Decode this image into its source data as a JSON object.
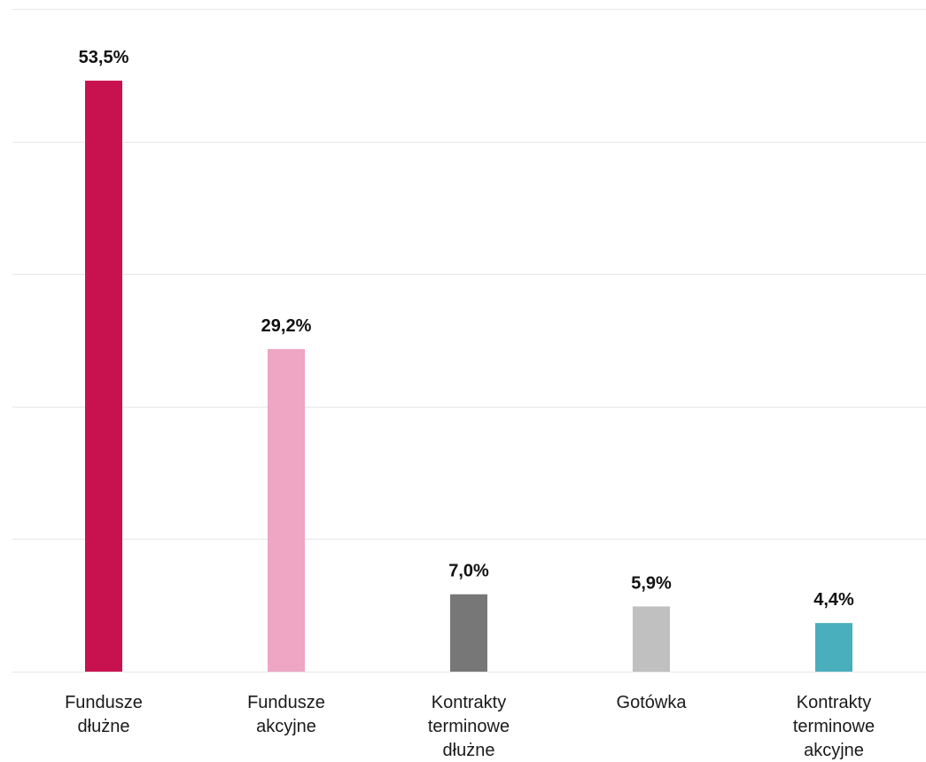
{
  "chart_data": {
    "type": "bar",
    "categories": [
      [
        "Fundusze",
        "dłużne"
      ],
      [
        "Fundusze",
        "akcyjne"
      ],
      [
        "Kontrakty",
        "terminowe",
        "dłużne"
      ],
      [
        "Gotówka"
      ],
      [
        "Kontrakty",
        "terminowe",
        "akcyjne"
      ]
    ],
    "values": [
      53.5,
      29.2,
      7.0,
      5.9,
      4.4
    ],
    "value_labels": [
      "53,5%",
      "29,2%",
      "7,0%",
      "5,9%",
      "4,4%"
    ],
    "colors": [
      "#c8114f",
      "#efa5c4",
      "#777777",
      "#c0c0c0",
      "#4aafbd"
    ],
    "ylim": [
      0,
      60
    ],
    "grid": true,
    "title": "",
    "xlabel": "",
    "ylabel": ""
  }
}
